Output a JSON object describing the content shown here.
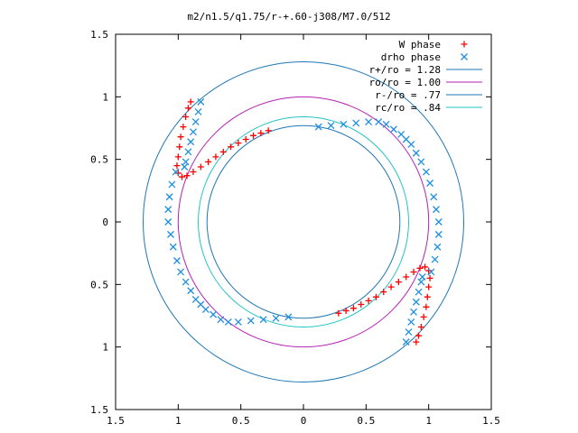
{
  "chart_data": {
    "type": "scatter",
    "title": "m2/n1.5/q1.75/r-+.60-j308/M7.0/512",
    "xlabel": "",
    "ylabel": "",
    "xlim": [
      -1.5,
      1.5
    ],
    "ylim": [
      -1.5,
      1.5
    ],
    "x_ticks": [
      -1.5,
      -1,
      -0.5,
      0,
      0.5,
      1,
      1.5
    ],
    "y_ticks": [
      -1.5,
      -1,
      -0.5,
      0,
      0.5,
      1,
      1.5
    ],
    "x_tick_labels": [
      "1.5",
      "1",
      "0.5",
      "0",
      "0.5",
      "1",
      "1.5"
    ],
    "y_tick_labels": [
      "1.5",
      "1",
      "0.5",
      "0",
      "0.5",
      "1",
      "1.5"
    ],
    "grid": false,
    "legend_position": "top-right",
    "circles": [
      {
        "label": "r+/ro = 1.28",
        "radius": 1.28,
        "color": "#1f77b4"
      },
      {
        "label": "ro/ro = 1.00",
        "radius": 1.0,
        "color": "#b51fb5"
      },
      {
        "label": "r-/ro = .77",
        "radius": 0.77,
        "color": "#1f77b4"
      },
      {
        "label": "rc/ro = .84",
        "radius": 0.84,
        "color": "#22c4c4"
      }
    ],
    "series": [
      {
        "name": "W phase",
        "marker": "plus",
        "color": "#ff0000",
        "points": [
          [
            -0.28,
            0.73
          ],
          [
            -0.34,
            0.71
          ],
          [
            -0.4,
            0.69
          ],
          [
            -0.46,
            0.66
          ],
          [
            -0.52,
            0.63
          ],
          [
            -0.58,
            0.6
          ],
          [
            -0.64,
            0.56
          ],
          [
            -0.7,
            0.52
          ],
          [
            -0.76,
            0.48
          ],
          [
            -0.82,
            0.44
          ],
          [
            -0.88,
            0.4
          ],
          [
            -0.93,
            0.37
          ],
          [
            -0.97,
            0.36
          ],
          [
            -1.0,
            0.39
          ],
          [
            -1.01,
            0.45
          ],
          [
            -1.0,
            0.52
          ],
          [
            -0.99,
            0.6
          ],
          [
            -0.98,
            0.68
          ],
          [
            -0.96,
            0.76
          ],
          [
            -0.94,
            0.84
          ],
          [
            -0.92,
            0.91
          ],
          [
            -0.9,
            0.96
          ],
          [
            0.28,
            -0.73
          ],
          [
            0.34,
            -0.71
          ],
          [
            0.4,
            -0.69
          ],
          [
            0.46,
            -0.66
          ],
          [
            0.52,
            -0.63
          ],
          [
            0.58,
            -0.6
          ],
          [
            0.64,
            -0.56
          ],
          [
            0.7,
            -0.52
          ],
          [
            0.76,
            -0.48
          ],
          [
            0.82,
            -0.44
          ],
          [
            0.88,
            -0.4
          ],
          [
            0.93,
            -0.37
          ],
          [
            0.97,
            -0.36
          ],
          [
            1.0,
            -0.39
          ],
          [
            1.01,
            -0.45
          ],
          [
            1.0,
            -0.52
          ],
          [
            0.99,
            -0.6
          ],
          [
            0.98,
            -0.68
          ],
          [
            0.96,
            -0.76
          ],
          [
            0.94,
            -0.84
          ],
          [
            0.92,
            -0.91
          ],
          [
            0.9,
            -0.96
          ]
        ]
      },
      {
        "name": "drho phase",
        "marker": "cross",
        "color": "#1f8fe0",
        "points": [
          [
            0.12,
            0.76
          ],
          [
            0.22,
            0.77
          ],
          [
            0.32,
            0.78
          ],
          [
            0.42,
            0.79
          ],
          [
            0.52,
            0.8
          ],
          [
            0.6,
            0.8
          ],
          [
            0.66,
            0.78
          ],
          [
            0.72,
            0.74
          ],
          [
            0.78,
            0.7
          ],
          [
            0.82,
            0.66
          ],
          [
            0.86,
            0.62
          ],
          [
            0.9,
            0.55
          ],
          [
            0.94,
            0.48
          ],
          [
            0.98,
            0.4
          ],
          [
            1.01,
            0.31
          ],
          [
            1.04,
            0.2
          ],
          [
            1.06,
            0.1
          ],
          [
            1.08,
            0.0
          ],
          [
            1.08,
            -0.1
          ],
          [
            1.07,
            -0.2
          ],
          [
            1.05,
            -0.3
          ],
          [
            1.02,
            -0.4
          ],
          [
            -0.12,
            -0.76
          ],
          [
            -0.22,
            -0.77
          ],
          [
            -0.32,
            -0.78
          ],
          [
            -0.42,
            -0.79
          ],
          [
            -0.52,
            -0.8
          ],
          [
            -0.6,
            -0.8
          ],
          [
            -0.66,
            -0.78
          ],
          [
            -0.72,
            -0.74
          ],
          [
            -0.78,
            -0.7
          ],
          [
            -0.82,
            -0.66
          ],
          [
            -0.86,
            -0.62
          ],
          [
            -0.9,
            -0.55
          ],
          [
            -0.94,
            -0.48
          ],
          [
            -0.98,
            -0.4
          ],
          [
            -1.01,
            -0.31
          ],
          [
            -1.04,
            -0.2
          ],
          [
            -1.06,
            -0.1
          ],
          [
            -1.08,
            0.0
          ],
          [
            -1.08,
            0.1
          ],
          [
            -1.07,
            0.2
          ],
          [
            -1.05,
            0.3
          ],
          [
            -1.02,
            0.4
          ],
          [
            -0.82,
            0.96
          ],
          [
            -0.84,
            0.88
          ],
          [
            -0.86,
            0.8
          ],
          [
            -0.88,
            0.72
          ],
          [
            -0.9,
            0.64
          ],
          [
            -0.92,
            0.56
          ],
          [
            -0.94,
            0.48
          ],
          [
            -0.95,
            0.44
          ],
          [
            0.82,
            -0.96
          ],
          [
            0.84,
            -0.88
          ],
          [
            0.86,
            -0.8
          ],
          [
            0.88,
            -0.72
          ],
          [
            0.9,
            -0.64
          ],
          [
            0.92,
            -0.56
          ],
          [
            0.94,
            -0.48
          ],
          [
            0.95,
            -0.44
          ]
        ]
      }
    ]
  }
}
